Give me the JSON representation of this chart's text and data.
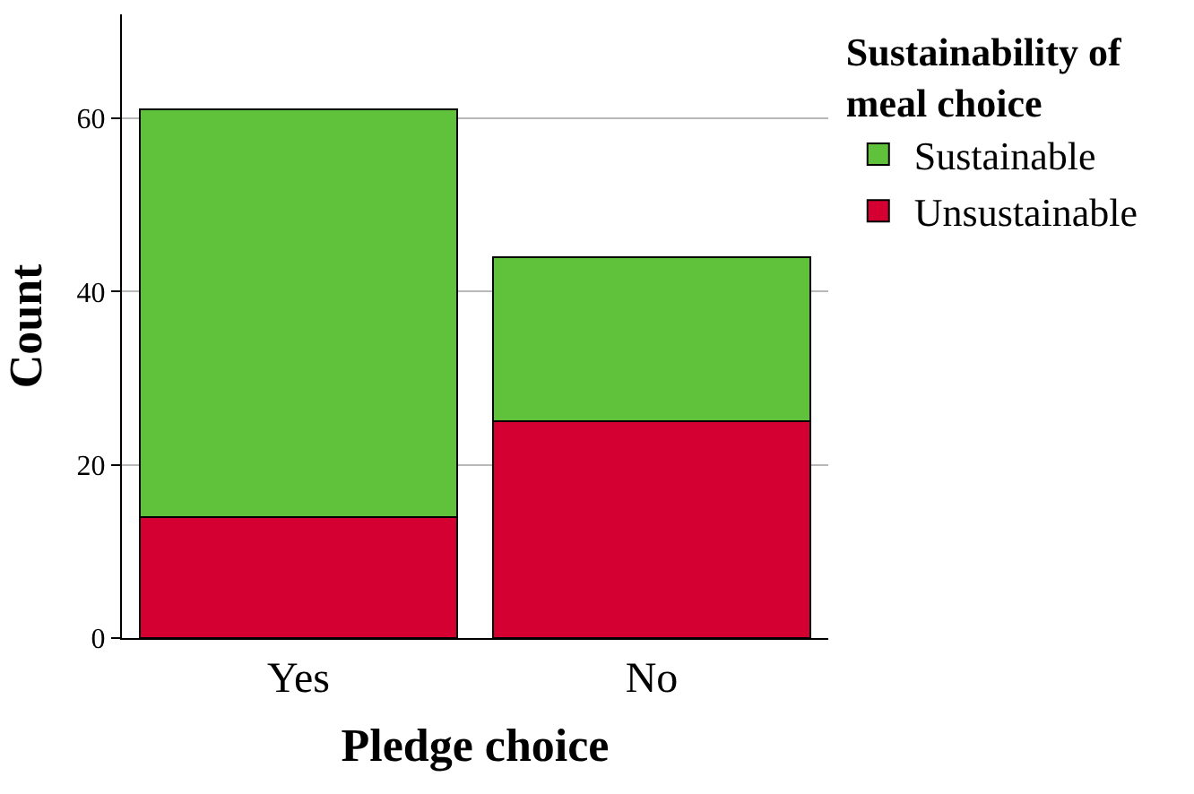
{
  "chart_data": {
    "type": "bar",
    "stacked": true,
    "xlabel": "Pledge choice",
    "ylabel": "Count",
    "legend_title": "Sustainability of meal choice",
    "categories": [
      "Yes",
      "No"
    ],
    "series": [
      {
        "name": "Unsustainable",
        "color": "#d50032",
        "values": [
          14,
          25
        ]
      },
      {
        "name": "Sustainable",
        "color": "#5fc23a",
        "values": [
          47,
          19
        ]
      }
    ],
    "ylim": [
      0,
      72
    ],
    "yticks": [
      0,
      20,
      40,
      60
    ],
    "grid": "y",
    "legend": "top right"
  }
}
